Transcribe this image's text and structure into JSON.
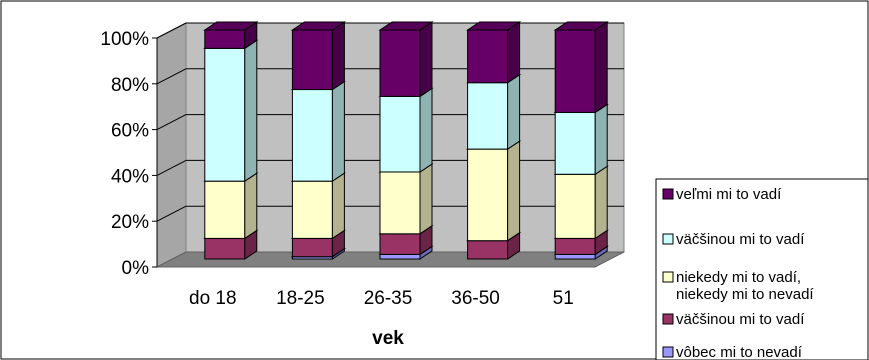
{
  "chart_data": {
    "type": "bar",
    "stacked": true,
    "percent": true,
    "three_d": true,
    "xlabel": "vek",
    "ylabel": "",
    "title": "",
    "ylim": [
      0,
      100
    ],
    "y_ticks": [
      "0%",
      "20%",
      "40%",
      "60%",
      "80%",
      "100%"
    ],
    "categories": [
      "do 18",
      "18-25",
      "26-35",
      "36-50",
      "51"
    ],
    "legend_position": "right",
    "series": [
      {
        "name": "vôbec mi to nevadí",
        "color": "#9999ff",
        "values": [
          0,
          1,
          2,
          0,
          2
        ]
      },
      {
        "name": "väčšinou mi to vadí",
        "color": "#993366",
        "values": [
          9,
          8,
          9,
          8,
          7
        ]
      },
      {
        "name": "niekedy mi to vadí, niekedy mi to nevadí",
        "color": "#ffffcc",
        "values": [
          25,
          25,
          27,
          40,
          28
        ]
      },
      {
        "name": "väčšinou mi to vadí",
        "color": "#ccffff",
        "values": [
          58,
          40,
          33,
          29,
          27
        ]
      },
      {
        "name": "veľmi mi to vadí",
        "color": "#660066",
        "values": [
          8,
          26,
          29,
          23,
          36
        ]
      }
    ]
  }
}
